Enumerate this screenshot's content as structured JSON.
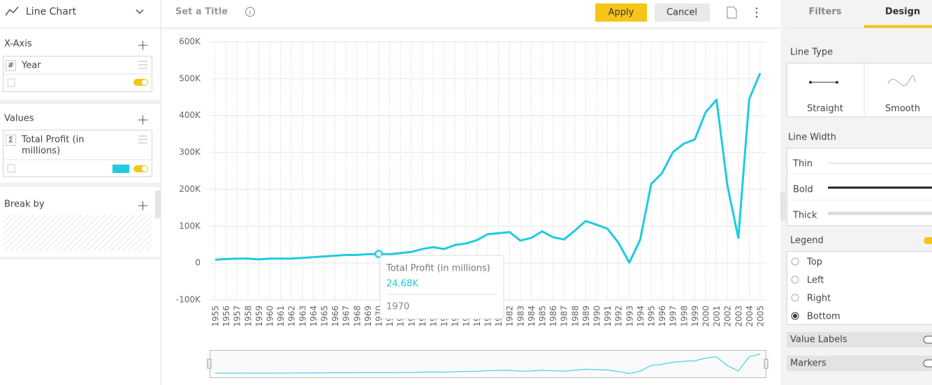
{
  "ui": {
    "chart_type": "Line Chart",
    "title_placeholder": "Set a Title",
    "apply": "Apply",
    "cancel": "Cancel",
    "x_axis": {
      "label": "X-Axis",
      "field_symbol": "#",
      "field": "Year"
    },
    "values": {
      "label": "Values",
      "field_symbol": "Σ",
      "field": "Total Profit (in millions)"
    },
    "break_by": "Break by",
    "tabs": [
      "Filters",
      "Design"
    ],
    "line_type": {
      "label": "Line Type",
      "options": [
        "Straight",
        "Smooth"
      ]
    },
    "line_width": {
      "label": "Line Width",
      "options": [
        "Thin",
        "Bold",
        "Thick"
      ]
    },
    "legend": {
      "label": "Legend",
      "options": [
        "Top",
        "Left",
        "Right",
        "Bottom"
      ],
      "selected": "Bottom"
    },
    "toggles": [
      "Value Labels",
      "Markers"
    ]
  },
  "chart_data": {
    "type": "line",
    "x": [
      1955,
      1956,
      1957,
      1958,
      1959,
      1960,
      1961,
      1962,
      1963,
      1964,
      1965,
      1966,
      1967,
      1968,
      1969,
      1970,
      1971,
      1972,
      1973,
      1974,
      1975,
      1976,
      1977,
      1978,
      1979,
      1980,
      1981,
      1982,
      1983,
      1984,
      1985,
      1986,
      1987,
      1988,
      1989,
      1990,
      1991,
      1992,
      1993,
      1994,
      1995,
      1996,
      1997,
      1998,
      1999,
      2000,
      2001,
      2002,
      2003,
      2004,
      2005
    ],
    "series": [
      {
        "name": "Total Profit (in millions)",
        "color": "#1ecbe1",
        "values": [
          9000,
          11000,
          12000,
          12000,
          10000,
          12000,
          12000,
          12000,
          14000,
          16000,
          18000,
          20000,
          22000,
          22000,
          24000,
          24680,
          24000,
          27000,
          30000,
          38000,
          43000,
          38000,
          49000,
          53000,
          62000,
          78000,
          81000,
          84000,
          61000,
          68000,
          86000,
          70000,
          64000,
          88000,
          114000,
          104000,
          93000,
          55000,
          1000,
          64000,
          214000,
          244000,
          301000,
          324000,
          335000,
          409000,
          443000,
          210000,
          68000,
          445000,
          515000
        ]
      }
    ],
    "xlim": [
      1955,
      2005
    ],
    "xticks": [
      1955,
      1956,
      1957,
      1958,
      1959,
      1960,
      1961,
      1962,
      1963,
      1964,
      1965,
      1966,
      1967,
      1968,
      1969,
      1970,
      1971,
      1972,
      1973,
      1974,
      1975,
      1976,
      1977,
      1978,
      1979,
      1980,
      1981,
      1982,
      1983,
      1984,
      1985,
      1986,
      1987,
      1988,
      1989,
      1990,
      1991,
      1992,
      1993,
      1994,
      1995,
      1996,
      1997,
      1998,
      1999,
      2000,
      2001,
      2002,
      2003,
      2004,
      2005
    ],
    "ylim": [
      -100000,
      600000
    ],
    "yticks": [
      {
        "value": -100000,
        "label": "-100K"
      },
      0,
      {
        "value": 100000,
        "label": "100K"
      },
      {
        "value": 200000,
        "label": "200K"
      },
      {
        "value": 300000,
        "label": "300K"
      },
      {
        "value": 400000,
        "label": "400K"
      },
      {
        "value": 500000,
        "label": "500K"
      },
      {
        "value": 600000,
        "label": "600K"
      }
    ],
    "grid": true,
    "tooltip": {
      "x": 1970,
      "value_label": "24.68K"
    }
  }
}
